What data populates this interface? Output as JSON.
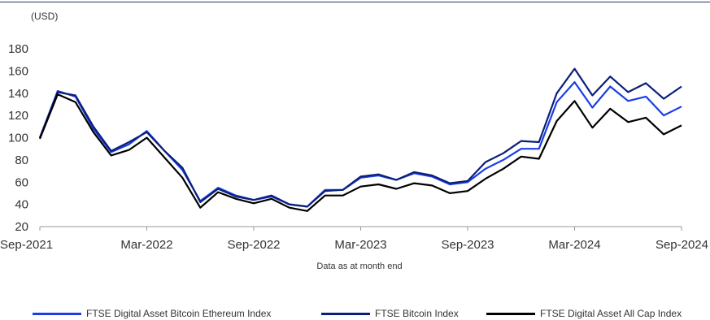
{
  "chart_data": {
    "type": "line",
    "title": "",
    "unit_label": "(USD)",
    "xlabel": "",
    "ylabel": "",
    "footnote": "Data as at month end",
    "ylim": [
      20,
      180
    ],
    "yticks": [
      20,
      40,
      60,
      80,
      100,
      120,
      140,
      160,
      180
    ],
    "x_tick_labels": [
      "Sep-2021",
      "Mar-2022",
      "Sep-2022",
      "Mar-2023",
      "Sep-2023",
      "Mar-2024",
      "Sep-2024"
    ],
    "x_tick_positions": [
      0,
      6,
      12,
      18,
      24,
      30,
      36
    ],
    "x_months": [
      "Sep-2021",
      "Oct-2021",
      "Nov-2021",
      "Dec-2021",
      "Jan-2022",
      "Feb-2022",
      "Mar-2022",
      "Apr-2022",
      "May-2022",
      "Jun-2022",
      "Jul-2022",
      "Aug-2022",
      "Sep-2022",
      "Oct-2022",
      "Nov-2022",
      "Dec-2022",
      "Jan-2023",
      "Feb-2023",
      "Mar-2023",
      "Apr-2023",
      "May-2023",
      "Jun-2023",
      "Jul-2023",
      "Aug-2023",
      "Sep-2023",
      "Oct-2023",
      "Nov-2023",
      "Dec-2023",
      "Jan-2024",
      "Feb-2024",
      "Mar-2024",
      "Apr-2024",
      "May-2024",
      "Jun-2024",
      "Jul-2024",
      "Aug-2024",
      "Sep-2024"
    ],
    "grid": false,
    "legend_position": "bottom",
    "series": [
      {
        "name": "FTSE Digital Asset Bitcoin Ethereum Index",
        "color": "#1a3ee8",
        "values": [
          100,
          142,
          137,
          108,
          87,
          94,
          106,
          88,
          71,
          43,
          55,
          48,
          44,
          47,
          40,
          38,
          53,
          53,
          64,
          66,
          62,
          68,
          65,
          58,
          60,
          72,
          80,
          90,
          90,
          132,
          150,
          127,
          146,
          133,
          137,
          120,
          128
        ]
      },
      {
        "name": "FTSE Bitcoin Index",
        "color": "#0a1f7a",
        "values": [
          100,
          141,
          138,
          110,
          88,
          96,
          105,
          88,
          73,
          42,
          54,
          47,
          44,
          48,
          40,
          38,
          52,
          53,
          65,
          67,
          62,
          69,
          66,
          59,
          61,
          78,
          86,
          97,
          96,
          140,
          162,
          138,
          155,
          141,
          149,
          135,
          146
        ]
      },
      {
        "name": "FTSE Digital Asset All Cap Index",
        "color": "#000000",
        "values": [
          99,
          139,
          132,
          105,
          84,
          89,
          100,
          82,
          64,
          37,
          51,
          45,
          41,
          45,
          37,
          34,
          48,
          48,
          56,
          58,
          54,
          59,
          57,
          50,
          52,
          63,
          72,
          83,
          81,
          115,
          133,
          109,
          126,
          114,
          118,
          103,
          111
        ]
      }
    ]
  }
}
